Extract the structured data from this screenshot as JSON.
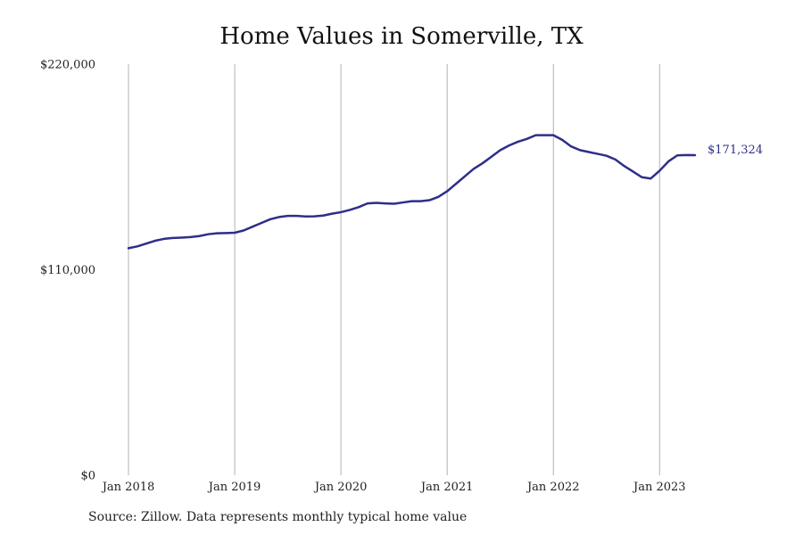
{
  "chart_data": {
    "type": "line",
    "title": "Home Values in Somerville, TX",
    "source": "Source: Zillow. Data represents monthly typical home value",
    "xlabel": "",
    "ylabel": "",
    "ylim": [
      0,
      220000
    ],
    "y_ticks": [
      {
        "value": 0,
        "label": "$0"
      },
      {
        "value": 110000,
        "label": "$110,000"
      },
      {
        "value": 220000,
        "label": "$220,000"
      }
    ],
    "x_ticks": [
      {
        "value": "2018-01",
        "label": "Jan 2018"
      },
      {
        "value": "2019-01",
        "label": "Jan 2019"
      },
      {
        "value": "2020-01",
        "label": "Jan 2020"
      },
      {
        "value": "2021-01",
        "label": "Jan 2021"
      },
      {
        "value": "2022-01",
        "label": "Jan 2022"
      },
      {
        "value": "2023-01",
        "label": "Jan 2023"
      }
    ],
    "xlim": [
      "2018-01",
      "2023-05"
    ],
    "grid": "vertical lines at each January",
    "line_color": "#2e2e8a",
    "end_label": "$171,324",
    "series": [
      {
        "x": [
          "2018-01",
          "2018-02",
          "2018-03",
          "2018-04",
          "2018-05",
          "2018-06",
          "2018-07",
          "2018-08",
          "2018-09",
          "2018-10",
          "2018-11",
          "2018-12",
          "2019-01",
          "2019-02",
          "2019-03",
          "2019-04",
          "2019-05",
          "2019-06",
          "2019-07",
          "2019-08",
          "2019-09",
          "2019-10",
          "2019-11",
          "2019-12",
          "2020-01",
          "2020-02",
          "2020-03",
          "2020-04",
          "2020-05",
          "2020-06",
          "2020-07",
          "2020-08",
          "2020-09",
          "2020-10",
          "2020-11",
          "2020-12",
          "2021-01",
          "2021-02",
          "2021-03",
          "2021-04",
          "2021-05",
          "2021-06",
          "2021-07",
          "2021-08",
          "2021-09",
          "2021-10",
          "2021-11",
          "2021-12",
          "2022-01",
          "2022-02",
          "2022-03",
          "2022-04",
          "2022-05",
          "2022-06",
          "2022-07",
          "2022-08",
          "2022-09",
          "2022-10",
          "2022-11",
          "2022-12",
          "2023-01",
          "2023-02",
          "2023-03",
          "2023-04",
          "2023-05"
        ],
        "values": [
          121500,
          122500,
          124000,
          125500,
          126500,
          127000,
          127200,
          127500,
          128000,
          129000,
          129500,
          129600,
          129800,
          131000,
          133000,
          135000,
          137000,
          138200,
          138800,
          138800,
          138500,
          138600,
          139000,
          140000,
          140800,
          142000,
          143500,
          145500,
          145800,
          145500,
          145300,
          146000,
          146700,
          146700,
          147200,
          149000,
          152000,
          156000,
          160000,
          164000,
          167000,
          170500,
          174000,
          176500,
          178500,
          180000,
          182000,
          182000,
          182000,
          179500,
          176000,
          174000,
          173000,
          172000,
          171000,
          169000,
          165500,
          162500,
          159500,
          158800,
          163000,
          168000,
          171200,
          171400,
          171324
        ]
      }
    ]
  }
}
